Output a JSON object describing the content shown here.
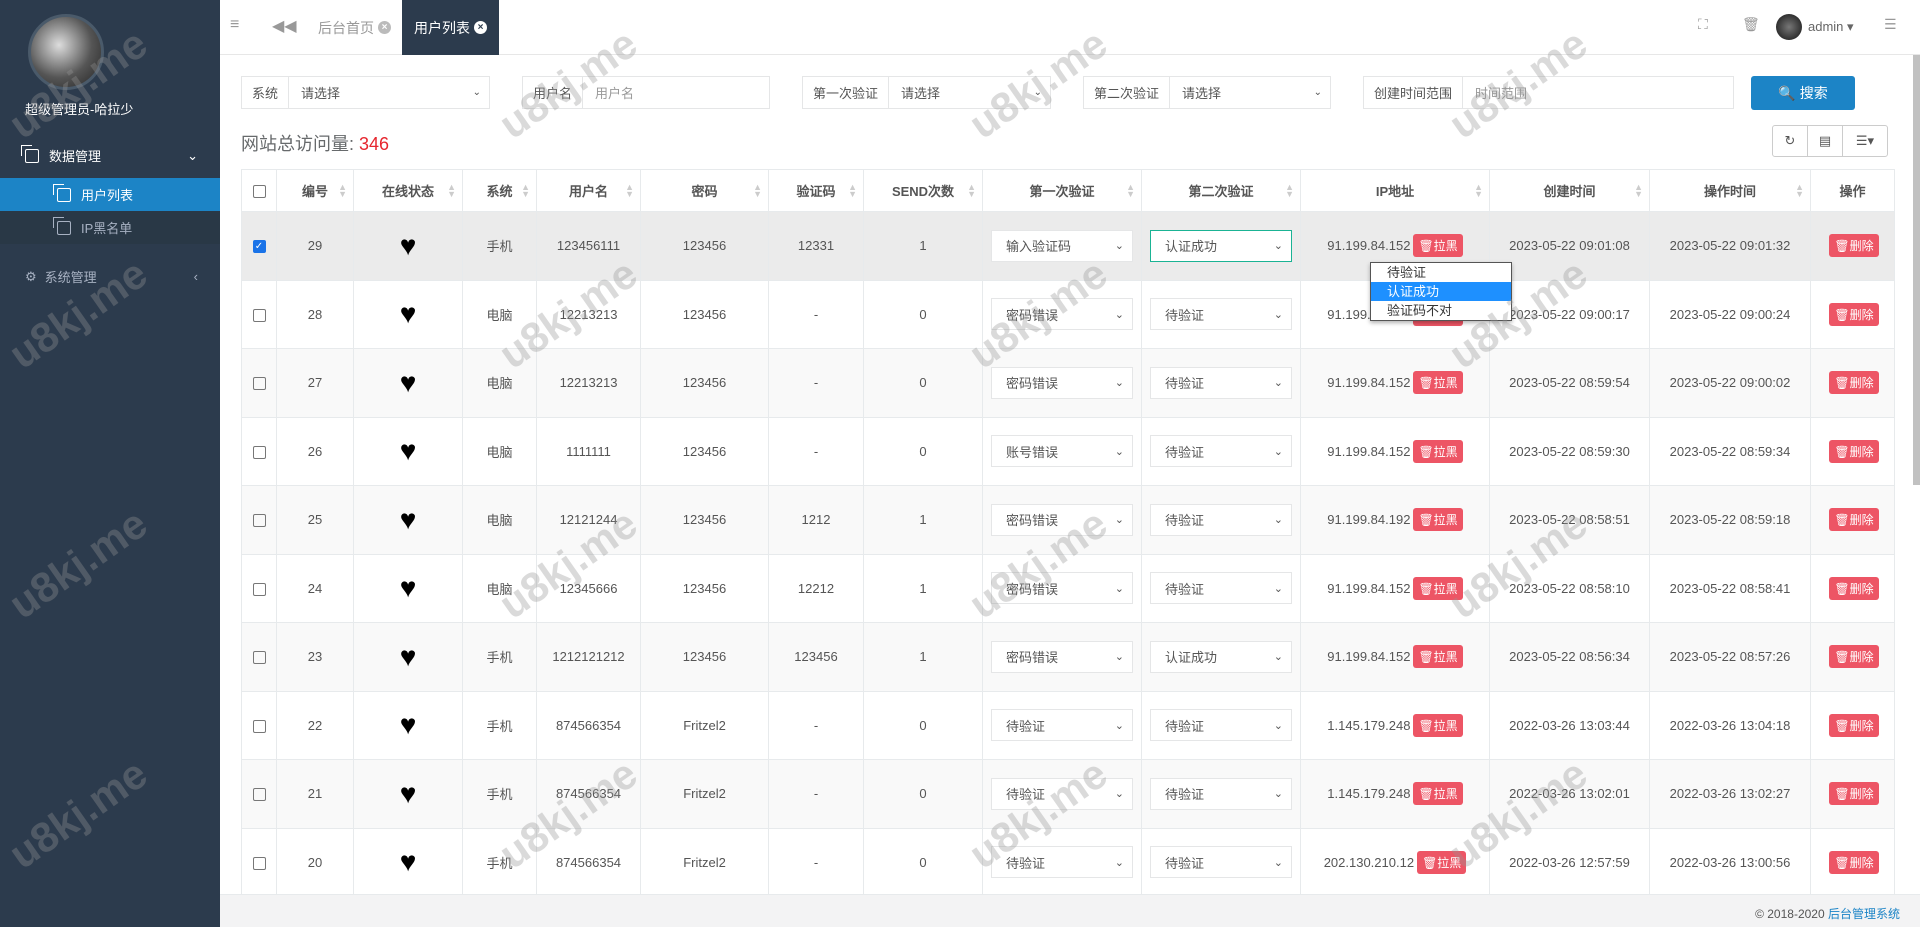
{
  "sidebar": {
    "user_name": "超级管理员-哈拉少",
    "menu": [
      {
        "label": "数据管理",
        "icon": "copy-icon",
        "expanded": true,
        "children": [
          {
            "label": "用户列表",
            "active": true
          },
          {
            "label": "IP黑名单",
            "active": false
          }
        ]
      },
      {
        "label": "系统管理",
        "icon": "gears-icon",
        "expanded": false
      }
    ]
  },
  "topbar": {
    "tabs": [
      {
        "label": "后台首页",
        "active": false
      },
      {
        "label": "用户列表",
        "active": true
      }
    ],
    "user": "admin"
  },
  "filters": {
    "system": {
      "label": "系统",
      "value": "请选择"
    },
    "username": {
      "label": "用户名",
      "placeholder": "用户名"
    },
    "first_verify": {
      "label": "第一次验证",
      "value": "请选择"
    },
    "second_verify": {
      "label": "第二次验证",
      "value": "请选择"
    },
    "created_range": {
      "label": "创建时间范围",
      "placeholder": "时间范围"
    },
    "search_label": "搜索"
  },
  "visits": {
    "label": "网站总访问量:",
    "count": "346"
  },
  "table": {
    "headers": [
      "编号",
      "在线状态",
      "系统",
      "用户名",
      "密码",
      "验证码",
      "SEND次数",
      "第一次验证",
      "第二次验证",
      "IP地址",
      "创建时间",
      "操作时间",
      "操作"
    ],
    "blacklist_label": "拉黑",
    "delete_label": "删除",
    "rows": [
      {
        "id": "29",
        "online": "♥",
        "system": "手机",
        "username": "123456111",
        "password": "123456",
        "code": "12331",
        "send": "1",
        "first": "输入验证码",
        "second": "认证成功",
        "ip": "91.199.84.152",
        "created": "2023-05-22 09:01:08",
        "operated": "2023-05-22 09:01:32",
        "checked": true
      },
      {
        "id": "28",
        "online": "♥",
        "system": "电脑",
        "username": "12213213",
        "password": "123456",
        "code": "-",
        "send": "0",
        "first": "密码错误",
        "second": "待验证",
        "ip": "91.199.84.152",
        "created": "2023-05-22 09:00:17",
        "operated": "2023-05-22 09:00:24",
        "checked": false
      },
      {
        "id": "27",
        "online": "♥",
        "system": "电脑",
        "username": "12213213",
        "password": "123456",
        "code": "-",
        "send": "0",
        "first": "密码错误",
        "second": "待验证",
        "ip": "91.199.84.152",
        "created": "2023-05-22 08:59:54",
        "operated": "2023-05-22 09:00:02",
        "checked": false
      },
      {
        "id": "26",
        "online": "♥",
        "system": "电脑",
        "username": "1111111",
        "password": "123456",
        "code": "-",
        "send": "0",
        "first": "账号错误",
        "second": "待验证",
        "ip": "91.199.84.152",
        "created": "2023-05-22 08:59:30",
        "operated": "2023-05-22 08:59:34",
        "checked": false
      },
      {
        "id": "25",
        "online": "♥",
        "system": "电脑",
        "username": "12121244",
        "password": "123456",
        "code": "1212",
        "send": "1",
        "first": "密码错误",
        "second": "待验证",
        "ip": "91.199.84.192",
        "created": "2023-05-22 08:58:51",
        "operated": "2023-05-22 08:59:18",
        "checked": false
      },
      {
        "id": "24",
        "online": "♥",
        "system": "电脑",
        "username": "12345666",
        "password": "123456",
        "code": "12212",
        "send": "1",
        "first": "密码错误",
        "second": "待验证",
        "ip": "91.199.84.152",
        "created": "2023-05-22 08:58:10",
        "operated": "2023-05-22 08:58:41",
        "checked": false
      },
      {
        "id": "23",
        "online": "♥",
        "system": "手机",
        "username": "1212121212",
        "password": "123456",
        "code": "123456",
        "send": "1",
        "first": "密码错误",
        "second": "认证成功",
        "ip": "91.199.84.152",
        "created": "2023-05-22 08:56:34",
        "operated": "2023-05-22 08:57:26",
        "checked": false
      },
      {
        "id": "22",
        "online": "♥",
        "system": "手机",
        "username": "874566354",
        "password": "Fritzel2",
        "code": "-",
        "send": "0",
        "first": "待验证",
        "second": "待验证",
        "ip": "1.145.179.248",
        "created": "2022-03-26 13:03:44",
        "operated": "2022-03-26 13:04:18",
        "checked": false
      },
      {
        "id": "21",
        "online": "♥",
        "system": "手机",
        "username": "874566354",
        "password": "Fritzel2",
        "code": "-",
        "send": "0",
        "first": "待验证",
        "second": "待验证",
        "ip": "1.145.179.248",
        "created": "2022-03-26 13:02:01",
        "operated": "2022-03-26 13:02:27",
        "checked": false
      },
      {
        "id": "20",
        "online": "♥",
        "system": "手机",
        "username": "874566354",
        "password": "Fritzel2",
        "code": "-",
        "send": "0",
        "first": "待验证",
        "second": "待验证",
        "ip": "202.130.210.12",
        "created": "2022-03-26 12:57:59",
        "operated": "2022-03-26 13:00:56",
        "checked": false
      }
    ]
  },
  "dropdown": {
    "options": [
      "待验证",
      "认证成功",
      "验证码不对"
    ],
    "highlighted": "认证成功"
  },
  "footer": {
    "copyright": "© 2018-2020",
    "link": "后台管理系统"
  },
  "watermark": "u8kj.me",
  "colors": {
    "sidebar": "#2c3b4d",
    "accent": "#1c84c6",
    "danger": "#ed5565",
    "count": "#e6262e"
  }
}
